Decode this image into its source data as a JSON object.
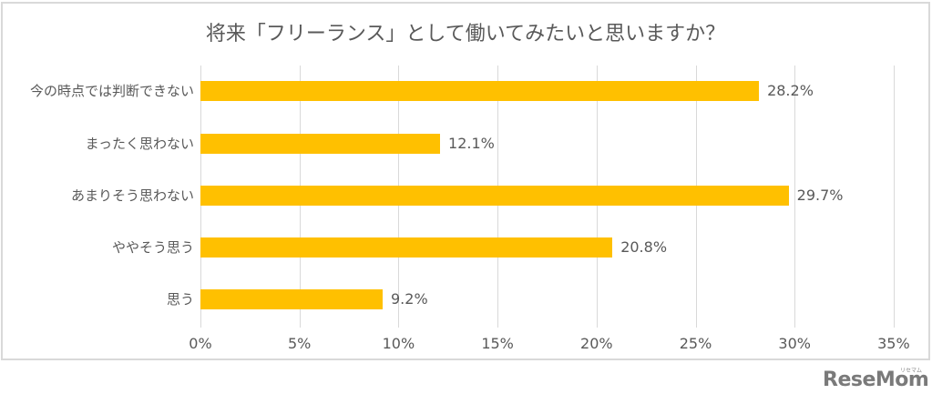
{
  "chart_data": {
    "type": "bar",
    "orientation": "horizontal",
    "title": "将来「フリーランス」として働いてみたいと思いますか？",
    "categories": [
      "今の時点では判断できない",
      "まったく思わない",
      "あまりそう思わない",
      "ややそう思う",
      "思う"
    ],
    "values": [
      28.2,
      12.1,
      29.7,
      20.8,
      9.2
    ],
    "value_labels": [
      "28.2%",
      "12.1%",
      "29.7%",
      "20.8%",
      "9.2%"
    ],
    "unit": "%",
    "xlabel": "",
    "ylabel": "",
    "xlim": [
      0,
      35
    ],
    "x_ticks": [
      "0%",
      "5%",
      "10%",
      "15%",
      "20%",
      "25%",
      "30%",
      "35%"
    ],
    "grid": "vertical",
    "legend": null,
    "bar_color": "#FFC000"
  },
  "watermark": {
    "brand": "ReseMom",
    "reading": "リセマム"
  }
}
